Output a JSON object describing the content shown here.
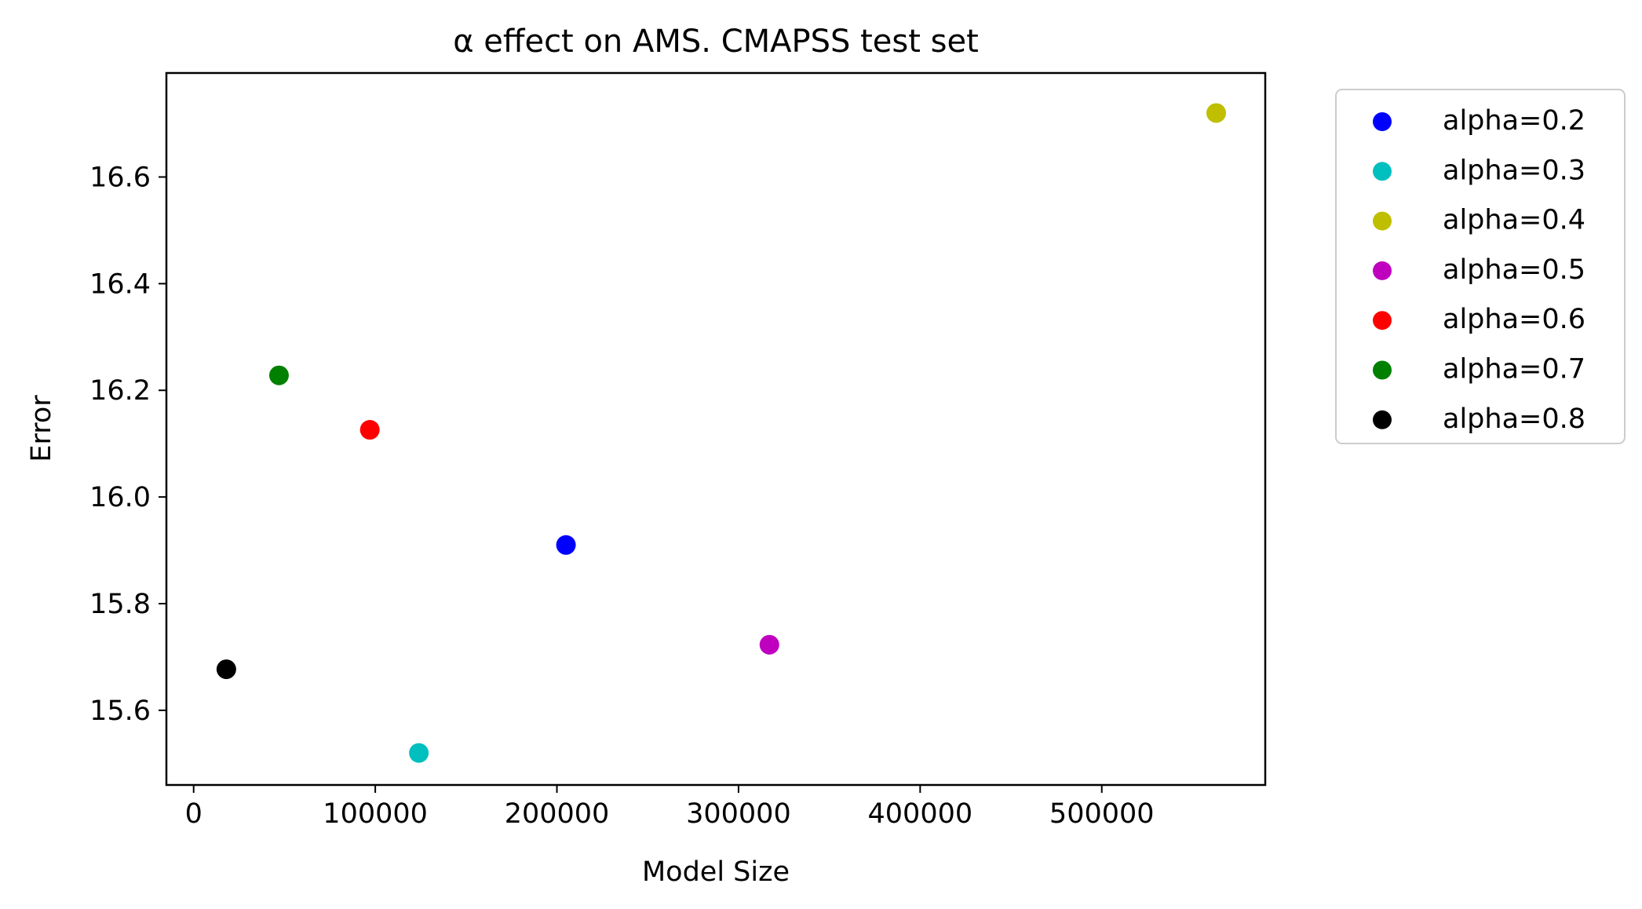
{
  "chart_data": {
    "type": "scatter",
    "title": "α effect on AMS. CMAPSS test set",
    "xlabel": "Model Size",
    "ylabel": "Error",
    "xlim": [
      -15000,
      590000
    ],
    "ylim": [
      15.46,
      16.795
    ],
    "xticks": [
      0,
      100000,
      200000,
      300000,
      400000,
      500000
    ],
    "xtick_labels": [
      "0",
      "100000",
      "200000",
      "300000",
      "400000",
      "500000"
    ],
    "yticks": [
      15.6,
      15.8,
      16.0,
      16.2,
      16.4,
      16.6
    ],
    "ytick_labels": [
      "15.6",
      "15.8",
      "16.0",
      "16.2",
      "16.4",
      "16.6"
    ],
    "grid": false,
    "legend_position": "outside-right",
    "series": [
      {
        "name": "alpha=0.2",
        "color": "#0000ff",
        "x": 205000,
        "y": 15.91
      },
      {
        "name": "alpha=0.3",
        "color": "#00bfbf",
        "x": 124000,
        "y": 15.52
      },
      {
        "name": "alpha=0.4",
        "color": "#bfbf00",
        "x": 563000,
        "y": 16.72
      },
      {
        "name": "alpha=0.5",
        "color": "#bf00bf",
        "x": 317000,
        "y": 15.723
      },
      {
        "name": "alpha=0.6",
        "color": "#ff0000",
        "x": 97000,
        "y": 16.126
      },
      {
        "name": "alpha=0.7",
        "color": "#008000",
        "x": 47000,
        "y": 16.228
      },
      {
        "name": "alpha=0.8",
        "color": "#000000",
        "x": 18000,
        "y": 15.677
      }
    ]
  }
}
